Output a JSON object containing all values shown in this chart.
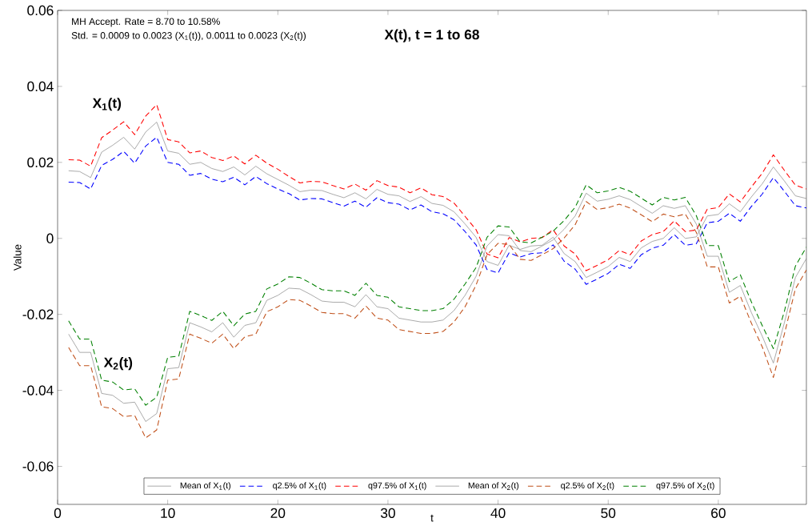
{
  "chart_data": {
    "type": "line",
    "title": "X(t), t = 1 to 68",
    "xlabel": "t",
    "ylabel": "Value",
    "x": [
      1,
      2,
      3,
      4,
      5,
      6,
      7,
      8,
      9,
      10,
      11,
      12,
      13,
      14,
      15,
      16,
      17,
      18,
      19,
      20,
      21,
      22,
      23,
      24,
      25,
      26,
      27,
      28,
      29,
      30,
      31,
      32,
      33,
      34,
      35,
      36,
      37,
      38,
      39,
      40,
      41,
      42,
      43,
      44,
      45,
      46,
      47,
      48,
      49,
      50,
      51,
      52,
      53,
      54,
      55,
      56,
      57,
      58,
      59,
      60,
      61,
      62,
      63,
      64,
      65,
      66,
      67,
      68
    ],
    "xlim": [
      0,
      68
    ],
    "xticks": [
      0,
      10,
      20,
      30,
      40,
      50,
      60
    ],
    "ylim": [
      -0.07,
      0.06
    ],
    "yticks": [
      -0.06,
      -0.04,
      -0.02,
      0,
      0.02,
      0.04,
      0.06
    ],
    "grid": false,
    "legend": "bottom",
    "marker": "none",
    "annotations": [
      "MH Accept. Rate = 8.70 to 10.58%",
      "Std. = 0.0009 to 0.0023 (X$_{1}$(t)), 0.0011 to 0.0023 (X$_{2}$(t))",
      "X$_{1}$(t)",
      "X$_{2}$(t)"
    ],
    "series": [
      {
        "name": "Mean of X$_{1}$(t)",
        "color": "#808080",
        "line_style": "solid",
        "values": [
          0.0178,
          0.0176,
          0.016,
          0.0227,
          0.0245,
          0.0266,
          0.0235,
          0.028,
          0.0306,
          0.023,
          0.0224,
          0.0195,
          0.02,
          0.0184,
          0.0176,
          0.0188,
          0.0167,
          0.019,
          0.017,
          0.0155,
          0.014,
          0.0123,
          0.0127,
          0.0126,
          0.0116,
          0.0107,
          0.012,
          0.0104,
          0.0129,
          0.0116,
          0.0112,
          0.0097,
          0.011,
          0.0092,
          0.0087,
          0.007,
          0.0038,
          0.0003,
          -0.0061,
          -0.0071,
          -0.0018,
          -0.0029,
          -0.002,
          -0.0018,
          0.0003,
          -0.004,
          -0.0061,
          -0.0103,
          -0.0089,
          -0.0074,
          -0.005,
          -0.0061,
          -0.0025,
          -0.0008,
          0.0,
          0.0028,
          0.0,
          0.0004,
          0.0059,
          0.0063,
          0.0091,
          0.007,
          0.0109,
          0.0144,
          0.0188,
          0.0151,
          0.0112,
          0.0105
        ]
      },
      {
        "name": "q2.5% of X$_{1}$(t)",
        "color": "#0000ff",
        "line_style": "dashed",
        "values": [
          0.0148,
          0.0147,
          0.013,
          0.0192,
          0.0208,
          0.0229,
          0.0198,
          0.0243,
          0.0266,
          0.02,
          0.0195,
          0.0166,
          0.0171,
          0.0156,
          0.0149,
          0.0161,
          0.0141,
          0.0163,
          0.0144,
          0.013,
          0.0118,
          0.0101,
          0.0105,
          0.0104,
          0.0094,
          0.0085,
          0.0098,
          0.0082,
          0.0107,
          0.0094,
          0.009,
          0.0075,
          0.0088,
          0.007,
          0.0065,
          0.0049,
          0.0018,
          -0.0017,
          -0.0082,
          -0.0091,
          -0.0038,
          -0.0049,
          -0.004,
          -0.0038,
          -0.0017,
          -0.006,
          -0.0081,
          -0.0121,
          -0.0107,
          -0.0092,
          -0.0068,
          -0.0079,
          -0.0043,
          -0.0026,
          -0.0018,
          0.001,
          -0.0018,
          -0.0014,
          0.0041,
          0.0045,
          0.0066,
          0.0045,
          0.0084,
          0.0117,
          0.016,
          0.0124,
          0.0086,
          0.008
        ]
      },
      {
        "name": "q97.5% of X$_{1}$(t)",
        "color": "#ff0000",
        "line_style": "dashed",
        "values": [
          0.0207,
          0.0206,
          0.019,
          0.0265,
          0.0285,
          0.0307,
          0.0273,
          0.0322,
          0.0352,
          0.026,
          0.0254,
          0.0225,
          0.023,
          0.0213,
          0.0205,
          0.0217,
          0.0196,
          0.0219,
          0.0198,
          0.0182,
          0.0163,
          0.0146,
          0.015,
          0.0149,
          0.0139,
          0.013,
          0.0143,
          0.0127,
          0.0152,
          0.0139,
          0.0135,
          0.012,
          0.0133,
          0.0115,
          0.011,
          0.0093,
          0.0058,
          0.0023,
          -0.0041,
          -0.0051,
          0.0002,
          -0.0009,
          0.0,
          0.0002,
          0.0023,
          -0.002,
          -0.0041,
          -0.0085,
          -0.0071,
          -0.0056,
          -0.0032,
          -0.0043,
          -0.0007,
          0.001,
          0.0018,
          0.0046,
          0.0018,
          0.0022,
          0.0077,
          0.0081,
          0.0117,
          0.0096,
          0.0135,
          0.0172,
          0.022,
          0.0179,
          0.014,
          0.013
        ]
      },
      {
        "name": "Mean of X$_{2}$(t)",
        "color": "#808080",
        "line_style": "solid",
        "values": [
          -0.0252,
          -0.03,
          -0.03,
          -0.0408,
          -0.0413,
          -0.0434,
          -0.0431,
          -0.0482,
          -0.0461,
          -0.0343,
          -0.034,
          -0.0222,
          -0.0233,
          -0.0246,
          -0.0222,
          -0.026,
          -0.0229,
          -0.0222,
          -0.0163,
          -0.015,
          -0.0131,
          -0.0133,
          -0.0148,
          -0.0165,
          -0.0168,
          -0.0168,
          -0.018,
          -0.0148,
          -0.018,
          -0.0185,
          -0.021,
          -0.0215,
          -0.022,
          -0.022,
          -0.0215,
          -0.019,
          -0.015,
          -0.01,
          -0.002,
          0.001,
          0.0007,
          -0.0032,
          -0.0035,
          -0.002,
          -0.0004,
          0.0024,
          0.0059,
          0.0119,
          0.0098,
          0.0103,
          0.0112,
          0.0102,
          0.0084,
          0.0066,
          0.0086,
          0.0079,
          0.0086,
          0.0038,
          -0.0047,
          -0.0047,
          -0.0142,
          -0.0124,
          -0.0195,
          -0.0258,
          -0.0328,
          -0.0222,
          -0.0103,
          -0.0053
        ]
      },
      {
        "name": "q2.5% of X$_{2}$(t)",
        "color": "#c0501a",
        "line_style": "dashed",
        "values": [
          -0.0287,
          -0.0335,
          -0.0335,
          -0.0443,
          -0.0448,
          -0.0469,
          -0.0466,
          -0.0525,
          -0.0504,
          -0.0373,
          -0.037,
          -0.0252,
          -0.0263,
          -0.0276,
          -0.0252,
          -0.029,
          -0.0259,
          -0.0252,
          -0.0193,
          -0.018,
          -0.0161,
          -0.0163,
          -0.0178,
          -0.0195,
          -0.0198,
          -0.0198,
          -0.021,
          -0.0178,
          -0.021,
          -0.0215,
          -0.024,
          -0.0245,
          -0.025,
          -0.025,
          -0.0245,
          -0.022,
          -0.018,
          -0.0123,
          -0.0043,
          -0.0013,
          -0.0016,
          -0.0055,
          -0.0058,
          -0.0043,
          -0.0027,
          0.0001,
          0.0036,
          0.0097,
          0.0076,
          0.0081,
          0.009,
          0.008,
          0.0062,
          0.0044,
          0.0064,
          0.0057,
          0.0064,
          0.0016,
          -0.0075,
          -0.0075,
          -0.017,
          -0.0152,
          -0.0223,
          -0.0286,
          -0.0366,
          -0.0252,
          -0.0133,
          -0.0083
        ]
      },
      {
        "name": "q97.5% of X$_{2}$(t)",
        "color": "#008000",
        "line_style": "dashed",
        "values": [
          -0.0217,
          -0.0265,
          -0.0265,
          -0.0373,
          -0.0378,
          -0.0399,
          -0.0396,
          -0.0439,
          -0.0418,
          -0.0313,
          -0.031,
          -0.0192,
          -0.0203,
          -0.0216,
          -0.0192,
          -0.023,
          -0.0199,
          -0.0192,
          -0.0133,
          -0.012,
          -0.0101,
          -0.0103,
          -0.0118,
          -0.0135,
          -0.0138,
          -0.0138,
          -0.015,
          -0.0118,
          -0.015,
          -0.0155,
          -0.018,
          -0.0185,
          -0.019,
          -0.019,
          -0.0185,
          -0.016,
          -0.012,
          -0.0077,
          0.0003,
          0.0033,
          0.003,
          -0.0009,
          -0.0012,
          0.0003,
          0.0019,
          0.0047,
          0.0082,
          0.0141,
          0.012,
          0.0125,
          0.0134,
          0.0124,
          0.0106,
          0.0088,
          0.0108,
          0.0101,
          0.0108,
          0.006,
          -0.0019,
          -0.0019,
          -0.0114,
          -0.0096,
          -0.0167,
          -0.023,
          -0.029,
          -0.0192,
          -0.0073,
          -0.0023
        ]
      }
    ]
  }
}
